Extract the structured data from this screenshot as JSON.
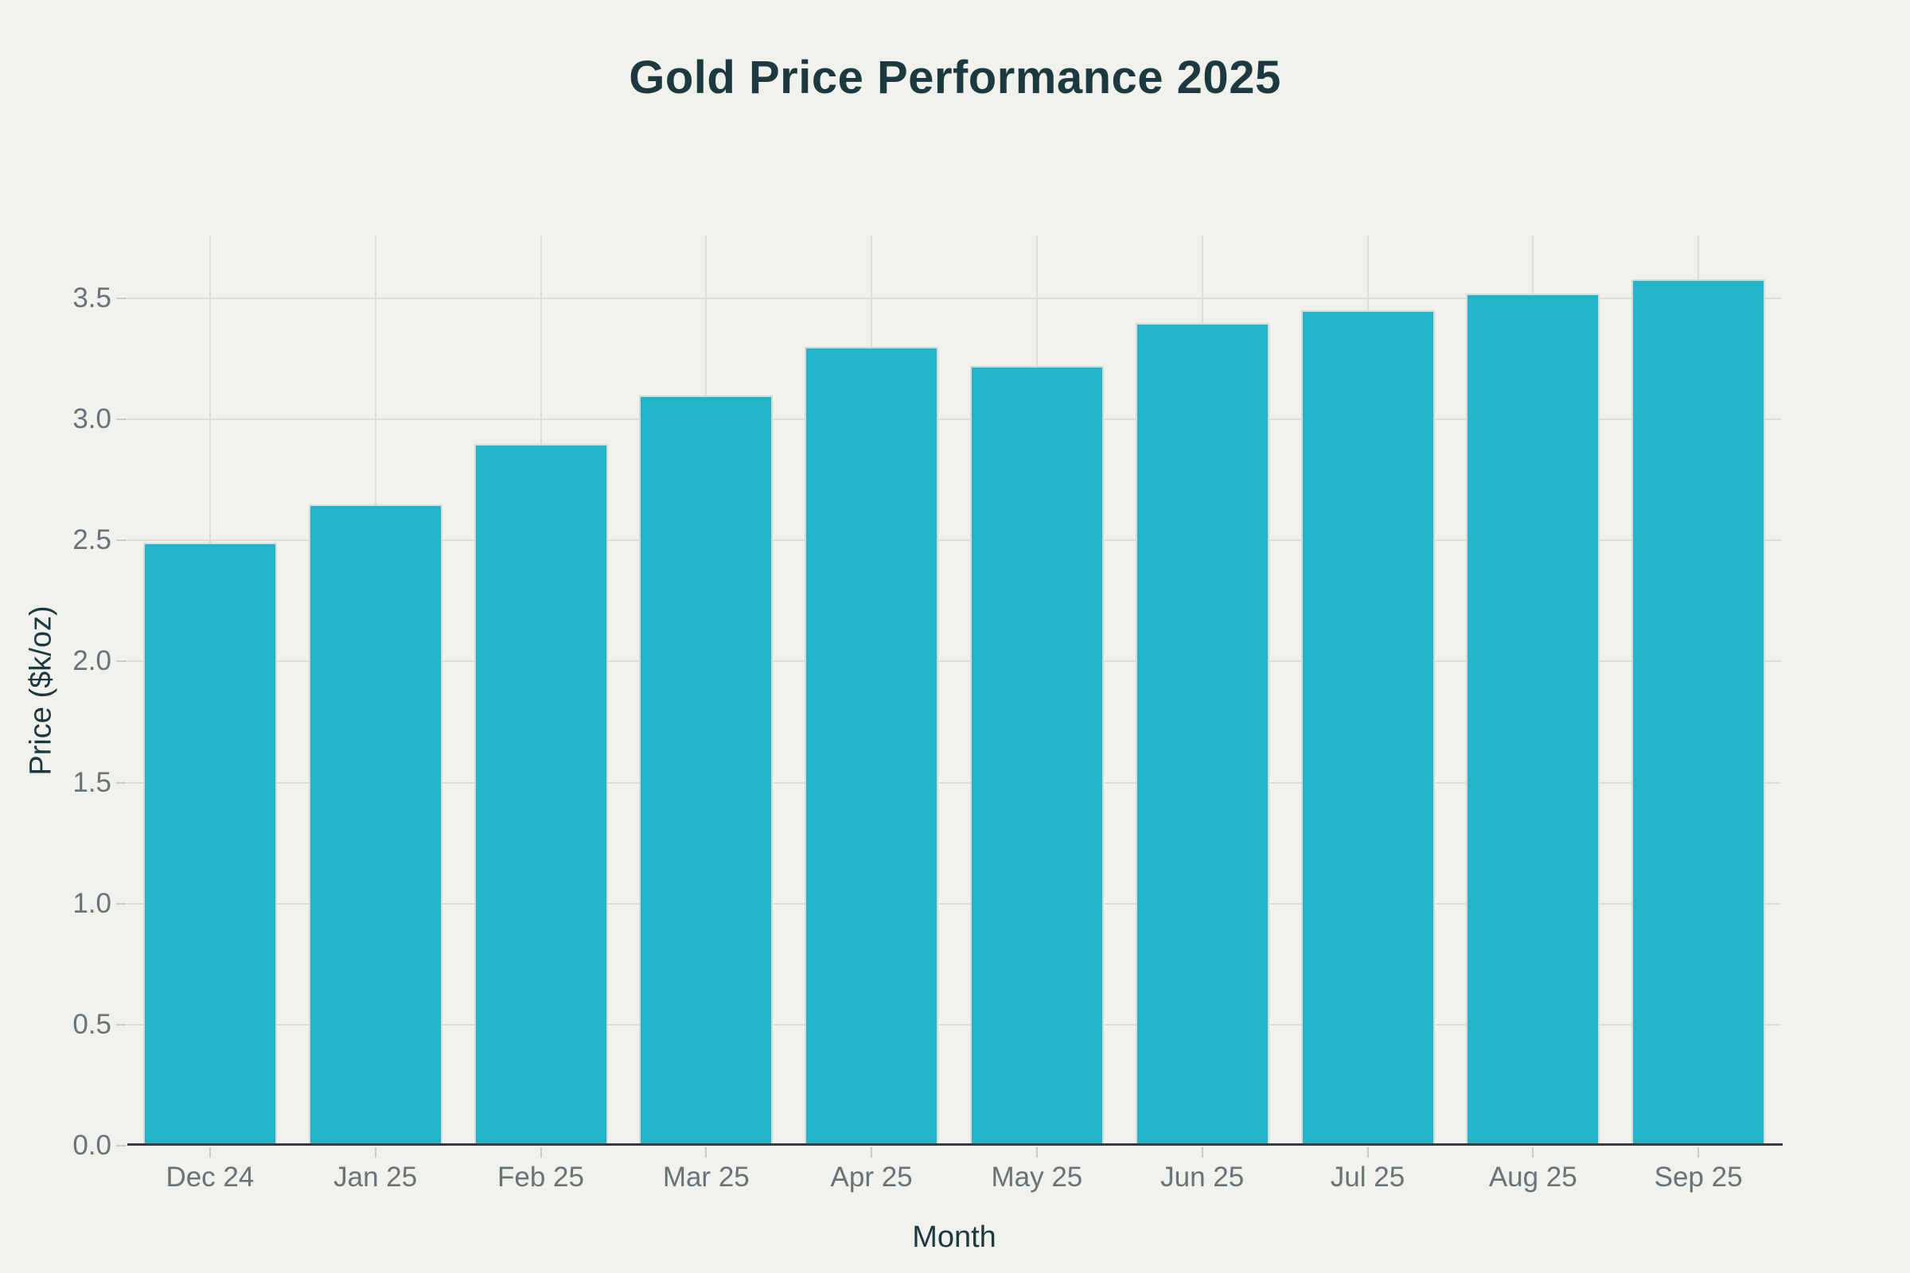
{
  "page": {
    "background_color": "#F0F2EB"
  },
  "chart_data": {
    "type": "bar",
    "title": "Gold Price Performance 2025",
    "xlabel": "Month",
    "ylabel": "Price ($k/oz)",
    "categories": [
      "Dec 24",
      "Jan 25",
      "Feb 25",
      "Mar 25",
      "Apr 25",
      "May 25",
      "Jun 25",
      "Jul 25",
      "Aug 25",
      "Sep 25"
    ],
    "values": [
      2.49,
      2.65,
      2.9,
      3.1,
      3.3,
      3.22,
      3.4,
      3.45,
      3.52,
      3.58
    ],
    "ylim": [
      0,
      3.76
    ],
    "yticks": [
      0,
      0.5,
      1.0,
      1.5,
      2.0,
      2.5,
      3.0,
      3.5
    ],
    "ytick_labels": [
      "0.0",
      "0.5",
      "1.0",
      "1.5",
      "2.0",
      "2.5",
      "3.0",
      "3.5"
    ],
    "grid": true,
    "legend": "none",
    "bar_color": "#22B4CB",
    "bar_outline_color": "#D9DBD3",
    "gridline_color": "#DCDED6",
    "axis_line_color": "#363B3E",
    "tick_label_color": "#67727B",
    "heading_color": "#1C3940"
  }
}
